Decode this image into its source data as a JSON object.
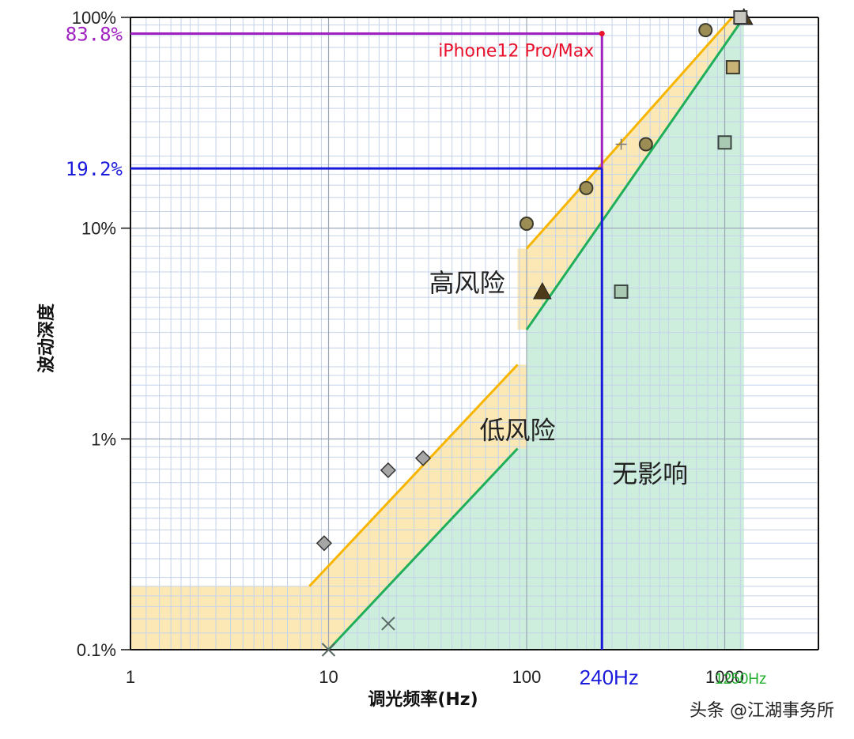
{
  "chart_data": {
    "type": "scatter",
    "x_scale": "log",
    "y_scale": "log",
    "xlim": [
      1,
      1250
    ],
    "ylim": [
      0.1,
      100
    ],
    "grid": true,
    "xlabel": "调光频率(Hz)",
    "ylabel": "波动深度",
    "x_ticks": [
      {
        "value": 1,
        "label": "1"
      },
      {
        "value": 10,
        "label": "10"
      },
      {
        "value": 100,
        "label": "100"
      },
      {
        "value": 1000,
        "label": "1000"
      }
    ],
    "y_ticks": [
      {
        "value": 0.1,
        "label": "0.1%"
      },
      {
        "value": 1,
        "label": "1%"
      },
      {
        "value": 10,
        "label": "10%"
      },
      {
        "value": 100,
        "label": "100%"
      }
    ],
    "zones": [
      {
        "label": "高风险",
        "x": 50,
        "y": 5
      },
      {
        "label": "低风险",
        "x": 90,
        "y": 1.0
      },
      {
        "label": "无影响",
        "x": 420,
        "y": 0.62
      }
    ],
    "boundaries": {
      "low_risk_line": [
        [
          8,
          0.2
        ],
        [
          90,
          2.25
        ]
      ],
      "low_risk_line_high": [
        [
          100,
          8
        ],
        [
          1090,
          100
        ]
      ],
      "no_effect_line": [
        [
          10,
          0.1
        ],
        [
          90,
          0.9
        ]
      ],
      "no_effect_line_high": [
        [
          100,
          3.3
        ],
        [
          1250,
          100
        ]
      ],
      "low_risk_fill_floor": 0.2,
      "low_risk_fill_xmax": 8
    },
    "markers": [
      {
        "shape": "cross",
        "x": 10,
        "y": 0.1
      },
      {
        "shape": "cross",
        "x": 20,
        "y": 0.133
      },
      {
        "shape": "diamond",
        "x": 9.5,
        "y": 0.32
      },
      {
        "shape": "diamond",
        "x": 20,
        "y": 0.71
      },
      {
        "shape": "diamond",
        "x": 30,
        "y": 0.81
      },
      {
        "shape": "circle",
        "x": 100,
        "y": 10.5
      },
      {
        "shape": "circle",
        "x": 200,
        "y": 15.5
      },
      {
        "shape": "circle",
        "x": 400,
        "y": 25
      },
      {
        "shape": "circle",
        "x": 800,
        "y": 87
      },
      {
        "shape": "triangle",
        "x": 120,
        "y": 5.0
      },
      {
        "shape": "triangle",
        "x": 1250,
        "y": 100
      },
      {
        "shape": "square-green",
        "x": 300,
        "y": 5.0
      },
      {
        "shape": "square-green",
        "x": 1000,
        "y": 25.5
      },
      {
        "shape": "square-tan",
        "x": 1100,
        "y": 58
      },
      {
        "shape": "square-gray",
        "x": 1200,
        "y": 100
      },
      {
        "shape": "plus",
        "x": 300,
        "y": 25
      }
    ],
    "annotations": {
      "device": {
        "label": "iPhone12 Pro/Max",
        "x": 240,
        "y": 83.8
      },
      "y_markers": [
        {
          "label": "83.8%",
          "value": 83.8,
          "color": "#a020c0"
        },
        {
          "label": "19.2%",
          "value": 19.2,
          "color": "#1a1adc"
        }
      ],
      "x_markers": [
        {
          "label": "240Hz",
          "value": 240,
          "color": "#1a1adc"
        },
        {
          "label": "1250Hz",
          "value": 1250,
          "color": "#22b030"
        }
      ]
    },
    "colors": {
      "yellow_line": "#f7b500",
      "green_line": "#1fae5a",
      "low_risk_fill": "#fce8b4",
      "no_effect_fill": "#cdeedd",
      "purple": "#a020c0",
      "blue": "#1a1adc",
      "red": "#e8102a"
    }
  },
  "watermark": "头条 @江湖事务所"
}
